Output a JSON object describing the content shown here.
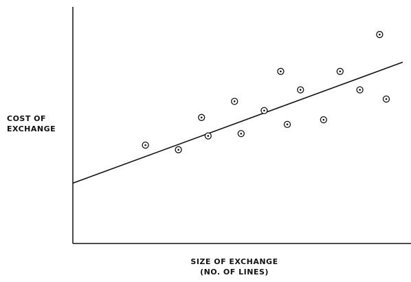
{
  "chart_data": {
    "type": "scatter",
    "title": "",
    "ylabel_lines": [
      "COST OF",
      "EXCHANGE"
    ],
    "xlabel_lines": [
      "SIZE OF EXCHANGE",
      "(NO. OF LINES)"
    ],
    "xlim": [
      0,
      100
    ],
    "ylim": [
      0,
      100
    ],
    "grid": false,
    "legend": "none",
    "points": [
      {
        "x": 22,
        "y": 40
      },
      {
        "x": 32,
        "y": 38
      },
      {
        "x": 39,
        "y": 52
      },
      {
        "x": 41,
        "y": 44
      },
      {
        "x": 49,
        "y": 59
      },
      {
        "x": 51,
        "y": 45
      },
      {
        "x": 58,
        "y": 55
      },
      {
        "x": 63,
        "y": 72
      },
      {
        "x": 65,
        "y": 49
      },
      {
        "x": 69,
        "y": 64
      },
      {
        "x": 76,
        "y": 51
      },
      {
        "x": 81,
        "y": 72
      },
      {
        "x": 87,
        "y": 64
      },
      {
        "x": 93,
        "y": 88
      },
      {
        "x": 95,
        "y": 60
      }
    ],
    "trend_line": {
      "x": [
        0,
        100
      ],
      "y": [
        23.5,
        76
      ]
    },
    "colors": {
      "ink": "#111111",
      "background": "#ffffff"
    }
  }
}
